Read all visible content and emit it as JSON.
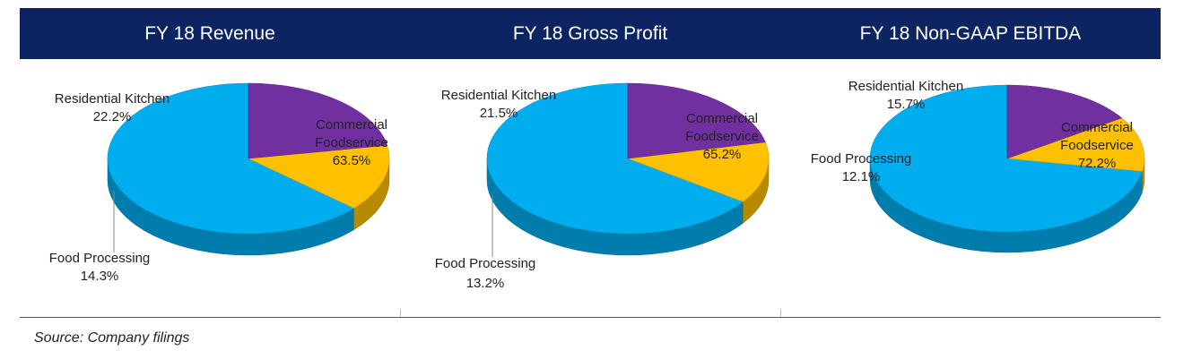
{
  "source": "Source: Company filings",
  "colors": {
    "header_bg": "#0c2461",
    "commercial_foodservice": "#00aeef",
    "food_processing": "#ffc000",
    "residential_kitchen": "#7030a0"
  },
  "chart_data": [
    {
      "type": "pie",
      "title": "FY 18 Revenue",
      "slices": [
        {
          "label": "Commercial\nFoodservice",
          "value": 63.5,
          "value_label": "63.5%",
          "color": "#00aeef"
        },
        {
          "label": "Food Processing",
          "value": 14.3,
          "value_label": "14.3%",
          "color": "#ffc000"
        },
        {
          "label": "Residential Kitchen",
          "value": 22.2,
          "value_label": "22.2%",
          "color": "#7030a0"
        }
      ]
    },
    {
      "type": "pie",
      "title": "FY 18 Gross Profit",
      "slices": [
        {
          "label": "Commercial\nFoodservice",
          "value": 65.2,
          "value_label": "65.2%",
          "color": "#00aeef"
        },
        {
          "label": "Food Processing",
          "value": 13.2,
          "value_label": "13.2%",
          "color": "#ffc000"
        },
        {
          "label": "Residential Kitchen",
          "value": 21.5,
          "value_label": "21.5%",
          "color": "#7030a0"
        }
      ]
    },
    {
      "type": "pie",
      "title": "FY 18 Non-GAAP EBITDA",
      "slices": [
        {
          "label": "Commercial\nFoodservice",
          "value": 72.2,
          "value_label": "72.2%",
          "color": "#00aeef"
        },
        {
          "label": "Food Processing",
          "value": 12.1,
          "value_label": "12.1%",
          "color": "#ffc000"
        },
        {
          "label": "Residential Kitchen",
          "value": 15.7,
          "value_label": "15.7%",
          "color": "#7030a0"
        }
      ]
    }
  ]
}
